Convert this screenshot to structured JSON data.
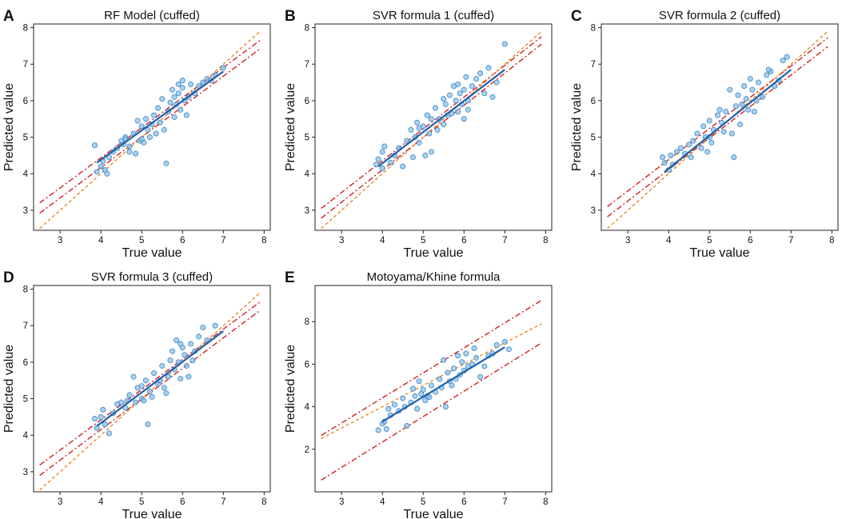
{
  "figure": {
    "x_label": "True value",
    "y_label": "Predicted value"
  },
  "colors": {
    "points_fill": "#8ec3ea",
    "points_stroke": "#3c86c4",
    "fit_line": "#1f5fa8",
    "identity_line": "#e8841c",
    "band_line": "#d42020",
    "axis": "#222222"
  },
  "chart_data": [
    {
      "panel": "A",
      "title": "RF Model (cuffed)",
      "type": "scatter",
      "xlim": [
        2.35,
        8.15
      ],
      "ylim": [
        2.45,
        8.1
      ],
      "xticks": [
        "3",
        "4",
        "5",
        "6",
        "7",
        "8"
      ],
      "yticks": [
        "3",
        "4",
        "5",
        "6",
        "7",
        "8"
      ],
      "fit": [
        [
          3.9,
          4.3
        ],
        [
          7.0,
          6.8
        ]
      ],
      "identity": [
        [
          2.5,
          2.5
        ],
        [
          7.9,
          7.9
        ]
      ],
      "band_upper": [
        [
          2.5,
          3.2
        ],
        [
          7.9,
          7.65
        ]
      ],
      "band_lower": [
        [
          2.5,
          2.92
        ],
        [
          7.9,
          7.42
        ]
      ],
      "points": [
        [
          3.85,
          4.78
        ],
        [
          3.9,
          4.05
        ],
        [
          4.0,
          4.2
        ],
        [
          4.05,
          4.35
        ],
        [
          4.1,
          4.1
        ],
        [
          4.15,
          4.0
        ],
        [
          4.2,
          4.45
        ],
        [
          4.3,
          4.6
        ],
        [
          4.4,
          4.7
        ],
        [
          4.5,
          4.9
        ],
        [
          4.55,
          4.8
        ],
        [
          4.6,
          5.0
        ],
        [
          4.7,
          4.75
        ],
        [
          4.8,
          5.1
        ],
        [
          4.85,
          4.55
        ],
        [
          4.9,
          5.45
        ],
        [
          4.95,
          4.9
        ],
        [
          5.0,
          5.3
        ],
        [
          5.05,
          4.85
        ],
        [
          5.1,
          5.5
        ],
        [
          5.15,
          5.2
        ],
        [
          5.2,
          5.0
        ],
        [
          5.25,
          5.35
        ],
        [
          5.3,
          5.6
        ],
        [
          5.35,
          5.1
        ],
        [
          5.4,
          5.8
        ],
        [
          5.45,
          5.4
        ],
        [
          5.5,
          6.05
        ],
        [
          5.55,
          5.2
        ],
        [
          5.6,
          4.28
        ],
        [
          5.65,
          5.7
        ],
        [
          5.7,
          5.95
        ],
        [
          5.75,
          6.3
        ],
        [
          5.8,
          6.1
        ],
        [
          5.85,
          5.9
        ],
        [
          5.9,
          6.2
        ],
        [
          5.95,
          5.75
        ],
        [
          6.0,
          6.35
        ],
        [
          6.05,
          6.0
        ],
        [
          6.1,
          5.6
        ],
        [
          6.15,
          6.1
        ],
        [
          6.2,
          6.45
        ],
        [
          6.3,
          6.2
        ],
        [
          6.4,
          6.4
        ],
        [
          6.5,
          6.5
        ],
        [
          6.6,
          6.6
        ],
        [
          6.7,
          6.55
        ],
        [
          6.8,
          6.7
        ],
        [
          7.0,
          6.9
        ],
        [
          5.0,
          4.95
        ],
        [
          4.7,
          4.6
        ],
        [
          5.8,
          5.55
        ],
        [
          6.0,
          6.55
        ],
        [
          5.9,
          6.45
        ],
        [
          4.6,
          4.95
        ]
      ]
    },
    {
      "panel": "B",
      "title": "SVR formula 1 (cuffed)",
      "type": "scatter",
      "xlim": [
        2.35,
        8.15
      ],
      "ylim": [
        2.45,
        8.1
      ],
      "xticks": [
        "3",
        "4",
        "5",
        "6",
        "7",
        "8"
      ],
      "yticks": [
        "3",
        "4",
        "5",
        "6",
        "7",
        "8"
      ],
      "fit": [
        [
          3.9,
          4.2
        ],
        [
          7.0,
          6.85
        ]
      ],
      "identity": [
        [
          2.5,
          2.5
        ],
        [
          7.9,
          7.9
        ]
      ],
      "band_upper": [
        [
          2.5,
          3.05
        ],
        [
          7.9,
          7.75
        ]
      ],
      "band_lower": [
        [
          2.5,
          2.78
        ],
        [
          7.9,
          7.55
        ]
      ],
      "points": [
        [
          3.85,
          4.25
        ],
        [
          3.9,
          4.4
        ],
        [
          4.0,
          4.15
        ],
        [
          4.0,
          4.6
        ],
        [
          4.05,
          4.75
        ],
        [
          4.2,
          4.3
        ],
        [
          4.3,
          4.5
        ],
        [
          4.4,
          4.7
        ],
        [
          4.5,
          4.2
        ],
        [
          4.6,
          4.9
        ],
        [
          4.7,
          5.2
        ],
        [
          4.8,
          5.0
        ],
        [
          4.85,
          5.4
        ],
        [
          4.9,
          4.85
        ],
        [
          5.0,
          5.3
        ],
        [
          5.05,
          4.5
        ],
        [
          5.1,
          5.6
        ],
        [
          5.15,
          5.1
        ],
        [
          5.2,
          5.5
        ],
        [
          5.3,
          5.8
        ],
        [
          5.35,
          5.2
        ],
        [
          5.4,
          5.5
        ],
        [
          5.5,
          5.35
        ],
        [
          5.55,
          5.9
        ],
        [
          5.6,
          5.6
        ],
        [
          5.7,
          5.65
        ],
        [
          5.75,
          6.4
        ],
        [
          5.8,
          6.0
        ],
        [
          5.85,
          5.7
        ],
        [
          5.9,
          6.2
        ],
        [
          5.95,
          5.9
        ],
        [
          6.0,
          6.3
        ],
        [
          6.05,
          6.65
        ],
        [
          6.1,
          6.0
        ],
        [
          6.2,
          6.4
        ],
        [
          6.3,
          6.6
        ],
        [
          6.4,
          6.75
        ],
        [
          6.5,
          6.2
        ],
        [
          6.6,
          6.9
        ],
        [
          6.7,
          6.1
        ],
        [
          6.8,
          6.5
        ],
        [
          7.0,
          7.55
        ],
        [
          5.2,
          4.6
        ],
        [
          5.5,
          6.05
        ],
        [
          4.9,
          5.25
        ],
        [
          6.1,
          5.75
        ],
        [
          5.65,
          6.15
        ],
        [
          4.75,
          4.45
        ],
        [
          5.85,
          6.45
        ],
        [
          6.0,
          5.5
        ]
      ]
    },
    {
      "panel": "C",
      "title": "SVR formula 2 (cuffed)",
      "type": "scatter",
      "xlim": [
        2.35,
        8.15
      ],
      "ylim": [
        2.45,
        8.1
      ],
      "xticks": [
        "3",
        "4",
        "5",
        "6",
        "7",
        "8"
      ],
      "yticks": [
        "3",
        "4",
        "5",
        "6",
        "7",
        "8"
      ],
      "fit": [
        [
          3.9,
          4.05
        ],
        [
          7.0,
          6.85
        ]
      ],
      "identity": [
        [
          2.5,
          2.5
        ],
        [
          7.9,
          7.9
        ]
      ],
      "band_upper": [
        [
          2.5,
          3.1
        ],
        [
          7.9,
          7.72
        ]
      ],
      "band_lower": [
        [
          2.5,
          2.82
        ],
        [
          7.9,
          7.48
        ]
      ],
      "points": [
        [
          3.85,
          4.45
        ],
        [
          3.9,
          4.3
        ],
        [
          4.0,
          4.1
        ],
        [
          4.05,
          4.5
        ],
        [
          4.1,
          4.25
        ],
        [
          4.2,
          4.6
        ],
        [
          4.3,
          4.7
        ],
        [
          4.4,
          4.55
        ],
        [
          4.5,
          4.8
        ],
        [
          4.6,
          4.9
        ],
        [
          4.7,
          5.1
        ],
        [
          4.8,
          4.7
        ],
        [
          4.85,
          5.3
        ],
        [
          4.9,
          5.0
        ],
        [
          5.0,
          5.45
        ],
        [
          5.05,
          4.85
        ],
        [
          5.1,
          5.2
        ],
        [
          5.2,
          5.6
        ],
        [
          5.3,
          5.4
        ],
        [
          5.4,
          5.7
        ],
        [
          5.5,
          6.3
        ],
        [
          5.55,
          5.1
        ],
        [
          5.6,
          4.45
        ],
        [
          5.65,
          5.85
        ],
        [
          5.7,
          6.15
        ],
        [
          5.8,
          5.9
        ],
        [
          5.85,
          6.4
        ],
        [
          5.9,
          6.05
        ],
        [
          5.95,
          5.75
        ],
        [
          6.0,
          6.6
        ],
        [
          6.05,
          6.3
        ],
        [
          6.1,
          5.7
        ],
        [
          6.2,
          6.5
        ],
        [
          6.3,
          6.1
        ],
        [
          6.4,
          6.7
        ],
        [
          6.5,
          6.8
        ],
        [
          6.6,
          6.4
        ],
        [
          6.7,
          6.55
        ],
        [
          6.8,
          7.1
        ],
        [
          6.9,
          7.2
        ],
        [
          5.0,
          5.0
        ],
        [
          5.25,
          5.75
        ],
        [
          4.95,
          4.6
        ],
        [
          6.15,
          6.0
        ],
        [
          5.75,
          5.35
        ],
        [
          6.45,
          6.85
        ],
        [
          4.55,
          4.45
        ],
        [
          5.35,
          5.15
        ]
      ]
    },
    {
      "panel": "D",
      "title": "SVR formula 3 (cuffed)",
      "type": "scatter",
      "xlim": [
        2.35,
        8.15
      ],
      "ylim": [
        2.45,
        8.1
      ],
      "xticks": [
        "3",
        "4",
        "5",
        "6",
        "7",
        "8"
      ],
      "yticks": [
        "3",
        "4",
        "5",
        "6",
        "7",
        "8"
      ],
      "fit": [
        [
          3.9,
          4.25
        ],
        [
          7.0,
          6.85
        ]
      ],
      "identity": [
        [
          2.5,
          2.5
        ],
        [
          7.9,
          7.9
        ]
      ],
      "band_upper": [
        [
          2.5,
          3.18
        ],
        [
          7.9,
          7.65
        ]
      ],
      "band_lower": [
        [
          2.5,
          2.9
        ],
        [
          7.9,
          7.42
        ]
      ],
      "points": [
        [
          3.85,
          4.45
        ],
        [
          3.9,
          4.2
        ],
        [
          4.0,
          4.5
        ],
        [
          4.05,
          4.7
        ],
        [
          4.1,
          4.3
        ],
        [
          4.2,
          4.05
        ],
        [
          4.3,
          4.6
        ],
        [
          4.4,
          4.85
        ],
        [
          4.5,
          4.9
        ],
        [
          4.6,
          4.75
        ],
        [
          4.7,
          5.1
        ],
        [
          4.8,
          5.6
        ],
        [
          4.85,
          4.9
        ],
        [
          4.9,
          5.3
        ],
        [
          5.0,
          5.0
        ],
        [
          5.05,
          4.95
        ],
        [
          5.1,
          5.5
        ],
        [
          5.15,
          4.3
        ],
        [
          5.2,
          5.2
        ],
        [
          5.3,
          5.7
        ],
        [
          5.4,
          5.4
        ],
        [
          5.5,
          5.9
        ],
        [
          5.55,
          5.3
        ],
        [
          5.6,
          5.15
        ],
        [
          5.65,
          5.6
        ],
        [
          5.7,
          6.05
        ],
        [
          5.75,
          6.3
        ],
        [
          5.8,
          5.8
        ],
        [
          5.85,
          6.6
        ],
        [
          5.9,
          6.0
        ],
        [
          5.95,
          5.55
        ],
        [
          6.0,
          6.4
        ],
        [
          6.05,
          6.2
        ],
        [
          6.1,
          5.9
        ],
        [
          6.15,
          5.6
        ],
        [
          6.2,
          6.5
        ],
        [
          6.3,
          6.3
        ],
        [
          6.4,
          6.7
        ],
        [
          6.5,
          6.95
        ],
        [
          6.6,
          6.6
        ],
        [
          6.8,
          7.0
        ],
        [
          5.0,
          5.35
        ],
        [
          5.45,
          5.5
        ],
        [
          4.65,
          4.95
        ],
        [
          6.25,
          6.05
        ],
        [
          5.25,
          5.05
        ],
        [
          5.95,
          6.5
        ]
      ]
    },
    {
      "panel": "E",
      "title": "Motoyama/Khine formula",
      "type": "scatter",
      "xlim": [
        2.35,
        8.15
      ],
      "ylim": [
        0.0,
        9.7
      ],
      "xticks": [
        "3",
        "4",
        "5",
        "6",
        "7",
        "8"
      ],
      "yticks": [
        "2",
        "4",
        "6",
        "8"
      ],
      "fit": [
        [
          4.0,
          3.3
        ],
        [
          7.0,
          6.8
        ]
      ],
      "identity": [
        [
          2.5,
          2.5
        ],
        [
          7.9,
          7.9
        ]
      ],
      "band_upper": [
        [
          2.5,
          2.65
        ],
        [
          7.9,
          9.0
        ]
      ],
      "band_lower": [
        [
          2.5,
          0.55
        ],
        [
          7.9,
          7.0
        ]
      ],
      "points": [
        [
          3.9,
          2.9
        ],
        [
          4.0,
          3.2
        ],
        [
          4.05,
          3.3
        ],
        [
          4.1,
          2.95
        ],
        [
          4.15,
          3.9
        ],
        [
          4.2,
          3.6
        ],
        [
          4.3,
          4.1
        ],
        [
          4.4,
          3.8
        ],
        [
          4.5,
          4.4
        ],
        [
          4.55,
          4.0
        ],
        [
          4.6,
          3.1
        ],
        [
          4.7,
          4.2
        ],
        [
          4.8,
          4.5
        ],
        [
          4.85,
          3.9
        ],
        [
          4.9,
          5.2
        ],
        [
          4.95,
          4.6
        ],
        [
          5.0,
          4.8
        ],
        [
          5.05,
          4.3
        ],
        [
          5.1,
          4.5
        ],
        [
          5.2,
          5.0
        ],
        [
          5.3,
          4.7
        ],
        [
          5.4,
          5.3
        ],
        [
          5.45,
          4.9
        ],
        [
          5.5,
          6.2
        ],
        [
          5.55,
          4.0
        ],
        [
          5.6,
          5.6
        ],
        [
          5.7,
          5.0
        ],
        [
          5.75,
          5.8
        ],
        [
          5.8,
          5.3
        ],
        [
          5.85,
          6.4
        ],
        [
          5.9,
          5.5
        ],
        [
          5.95,
          6.1
        ],
        [
          6.0,
          5.7
        ],
        [
          6.05,
          6.5
        ],
        [
          6.1,
          5.9
        ],
        [
          6.2,
          6.0
        ],
        [
          6.3,
          6.3
        ],
        [
          6.4,
          5.4
        ],
        [
          6.5,
          5.9
        ],
        [
          6.6,
          6.4
        ],
        [
          6.7,
          6.5
        ],
        [
          6.8,
          6.9
        ],
        [
          7.0,
          7.05
        ],
        [
          7.1,
          6.7
        ],
        [
          5.15,
          4.45
        ],
        [
          4.75,
          4.85
        ],
        [
          5.65,
          5.2
        ],
        [
          6.25,
          6.75
        ]
      ]
    }
  ]
}
